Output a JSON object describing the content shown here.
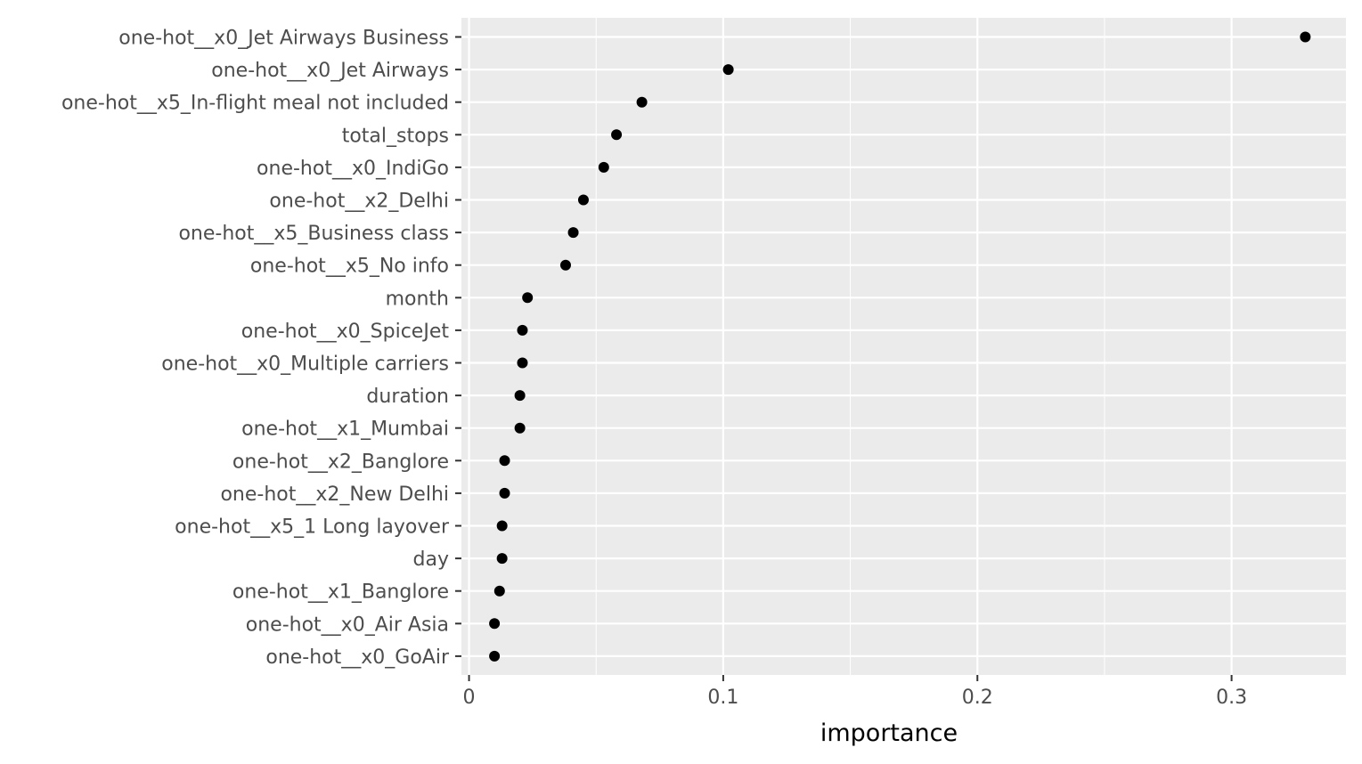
{
  "chart_data": {
    "type": "scatter",
    "title": "",
    "xlabel": "importance",
    "ylabel": "",
    "xlim": [
      -0.003,
      0.345
    ],
    "x_ticks": [
      0,
      0.1,
      0.2,
      0.3
    ],
    "x_tick_labels": [
      "0",
      "0.1",
      "0.2",
      "0.3"
    ],
    "grid": true,
    "point_color": "#000000",
    "panel_color": "#ebebeb",
    "categories": [
      "one-hot__x0_Jet Airways Business",
      "one-hot__x0_Jet Airways",
      "one-hot__x5_In-flight meal not included",
      "total_stops",
      "one-hot__x0_IndiGo",
      "one-hot__x2_Delhi",
      "one-hot__x5_Business class",
      "one-hot__x5_No info",
      "month",
      "one-hot__x0_SpiceJet",
      "one-hot__x0_Multiple carriers",
      "duration",
      "one-hot__x1_Mumbai",
      "one-hot__x2_Banglore",
      "one-hot__x2_New Delhi",
      "one-hot__x5_1 Long layover",
      "day",
      "one-hot__x1_Banglore",
      "one-hot__x0_Air Asia",
      "one-hot__x0_GoAir"
    ],
    "values": [
      0.329,
      0.102,
      0.068,
      0.058,
      0.053,
      0.045,
      0.041,
      0.038,
      0.023,
      0.021,
      0.021,
      0.02,
      0.02,
      0.014,
      0.014,
      0.013,
      0.013,
      0.012,
      0.01,
      0.01
    ]
  }
}
